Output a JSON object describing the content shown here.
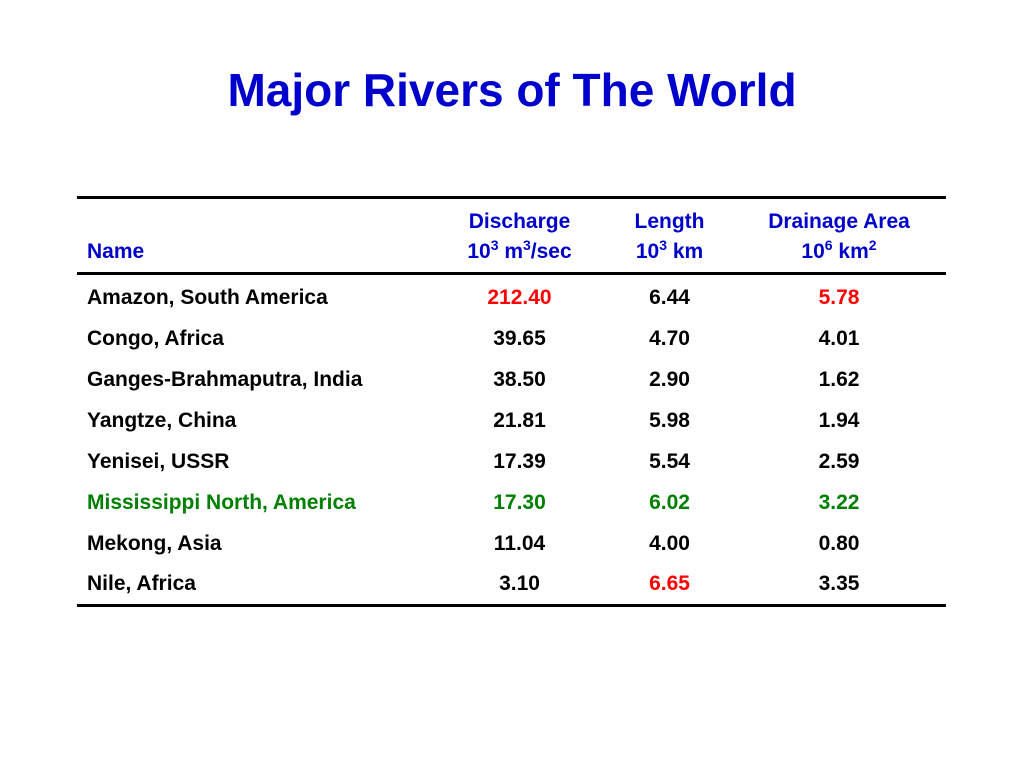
{
  "title": "Major Rivers of The World",
  "colors": {
    "title": "#0000CC",
    "header": "#0000CC",
    "text": "#000000",
    "red_highlight": "#FF0000",
    "green_highlight": "#008000"
  },
  "table": {
    "columns": [
      {
        "key": "name",
        "line1": "",
        "line2": "Name"
      },
      {
        "key": "discharge",
        "line1": "Discharge",
        "line2_base": "10",
        "line2_sup": "3",
        "line2_mid": " m",
        "line2_sup2": "3",
        "line2_tail": "/sec"
      },
      {
        "key": "length",
        "line1": "Length",
        "line2_base": "10",
        "line2_sup": "3",
        "line2_tail": " km"
      },
      {
        "key": "drainage",
        "line1": "Drainage Area",
        "line2_base": "10",
        "line2_sup": "6",
        "line2_mid": " km",
        "line2_sup2": "2"
      }
    ],
    "rows": [
      {
        "name": "Amazon, South America",
        "discharge": "212.40",
        "length": "6.44",
        "drainage": "5.78",
        "colors": {
          "name": "text",
          "discharge": "red_highlight",
          "length": "text",
          "drainage": "red_highlight"
        }
      },
      {
        "name": "Congo, Africa",
        "discharge": "39.65",
        "length": "4.70",
        "drainage": "4.01",
        "colors": {
          "name": "text",
          "discharge": "text",
          "length": "text",
          "drainage": "text"
        }
      },
      {
        "name": "Ganges-Brahmaputra, India",
        "discharge": "38.50",
        "length": "2.90",
        "drainage": "1.62",
        "colors": {
          "name": "text",
          "discharge": "text",
          "length": "text",
          "drainage": "text"
        }
      },
      {
        "name": "Yangtze, China",
        "discharge": "21.81",
        "length": "5.98",
        "drainage": "1.94",
        "colors": {
          "name": "text",
          "discharge": "text",
          "length": "text",
          "drainage": "text"
        }
      },
      {
        "name": "Yenisei, USSR",
        "discharge": "17.39",
        "length": "5.54",
        "drainage": "2.59",
        "colors": {
          "name": "text",
          "discharge": "text",
          "length": "text",
          "drainage": "text"
        }
      },
      {
        "name": "Mississippi North, America",
        "discharge": "17.30",
        "length": "6.02",
        "drainage": "3.22",
        "colors": {
          "name": "green_highlight",
          "discharge": "green_highlight",
          "length": "green_highlight",
          "drainage": "green_highlight"
        }
      },
      {
        "name": "Mekong, Asia",
        "discharge": "11.04",
        "length": "4.00",
        "drainage": "0.80",
        "colors": {
          "name": "text",
          "discharge": "text",
          "length": "text",
          "drainage": "text"
        }
      },
      {
        "name": "Nile, Africa",
        "discharge": "3.10",
        "length": "6.65",
        "drainage": "3.35",
        "colors": {
          "name": "text",
          "discharge": "text",
          "length": "red_highlight",
          "drainage": "text"
        }
      }
    ]
  }
}
